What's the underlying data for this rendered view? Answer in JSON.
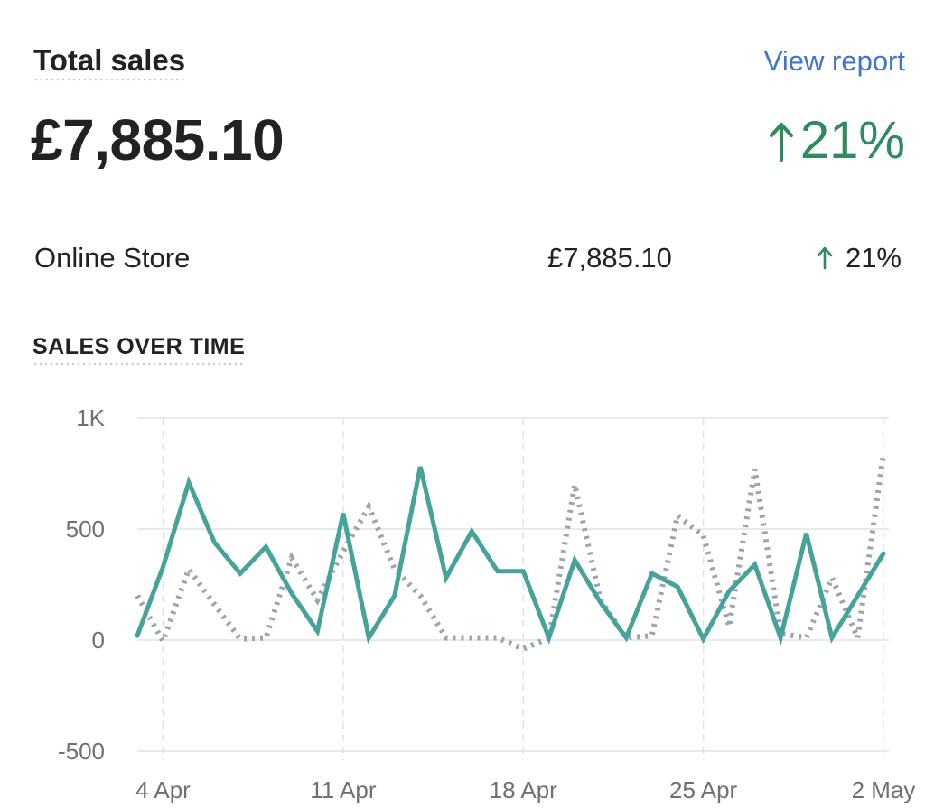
{
  "header": {
    "title": "Total sales",
    "view_report": "View report"
  },
  "summary": {
    "total": "£7,885.10",
    "change": "21%"
  },
  "channels": [
    {
      "name": "Online Store",
      "amount": "£7,885.10",
      "change": "21%"
    }
  ],
  "section_title": "SALES OVER TIME",
  "colors": {
    "positive": "#2f8a5e",
    "link": "#3f74c8",
    "current_series": "#46a39a",
    "previous_series": "#9ea3b0"
  },
  "chart_data": {
    "type": "line",
    "x": [
      "3 Apr",
      "4 Apr",
      "5 Apr",
      "6 Apr",
      "7 Apr",
      "8 Apr",
      "9 Apr",
      "10 Apr",
      "11 Apr",
      "12 Apr",
      "13 Apr",
      "14 Apr",
      "15 Apr",
      "16 Apr",
      "17 Apr",
      "18 Apr",
      "19 Apr",
      "20 Apr",
      "21 Apr",
      "22 Apr",
      "23 Apr",
      "24 Apr",
      "25 Apr",
      "26 Apr",
      "27 Apr",
      "28 Apr",
      "29 Apr",
      "30 Apr",
      "1 May",
      "2 May"
    ],
    "x_tick_labels": [
      "4 Apr",
      "11 Apr",
      "18 Apr",
      "25 Apr",
      "2 May"
    ],
    "y_tick_labels": [
      "1K",
      "500",
      "0",
      "-500"
    ],
    "y_ticks": [
      1000,
      500,
      0,
      -500
    ],
    "ylim": [
      -500,
      1000
    ],
    "grid": true,
    "series": [
      {
        "style": "solid",
        "values": [
          20,
          330,
          710,
          440,
          300,
          420,
          210,
          40,
          570,
          10,
          200,
          780,
          280,
          490,
          310,
          310,
          10,
          360,
          170,
          10,
          300,
          240,
          5,
          220,
          340,
          10,
          480,
          10,
          200,
          390
        ]
      },
      {
        "style": "dotted",
        "values": [
          200,
          -5,
          320,
          160,
          5,
          10,
          370,
          180,
          400,
          600,
          320,
          200,
          10,
          10,
          10,
          -40,
          10,
          700,
          180,
          10,
          20,
          560,
          470,
          60,
          770,
          30,
          10,
          280,
          10,
          840
        ]
      }
    ]
  }
}
